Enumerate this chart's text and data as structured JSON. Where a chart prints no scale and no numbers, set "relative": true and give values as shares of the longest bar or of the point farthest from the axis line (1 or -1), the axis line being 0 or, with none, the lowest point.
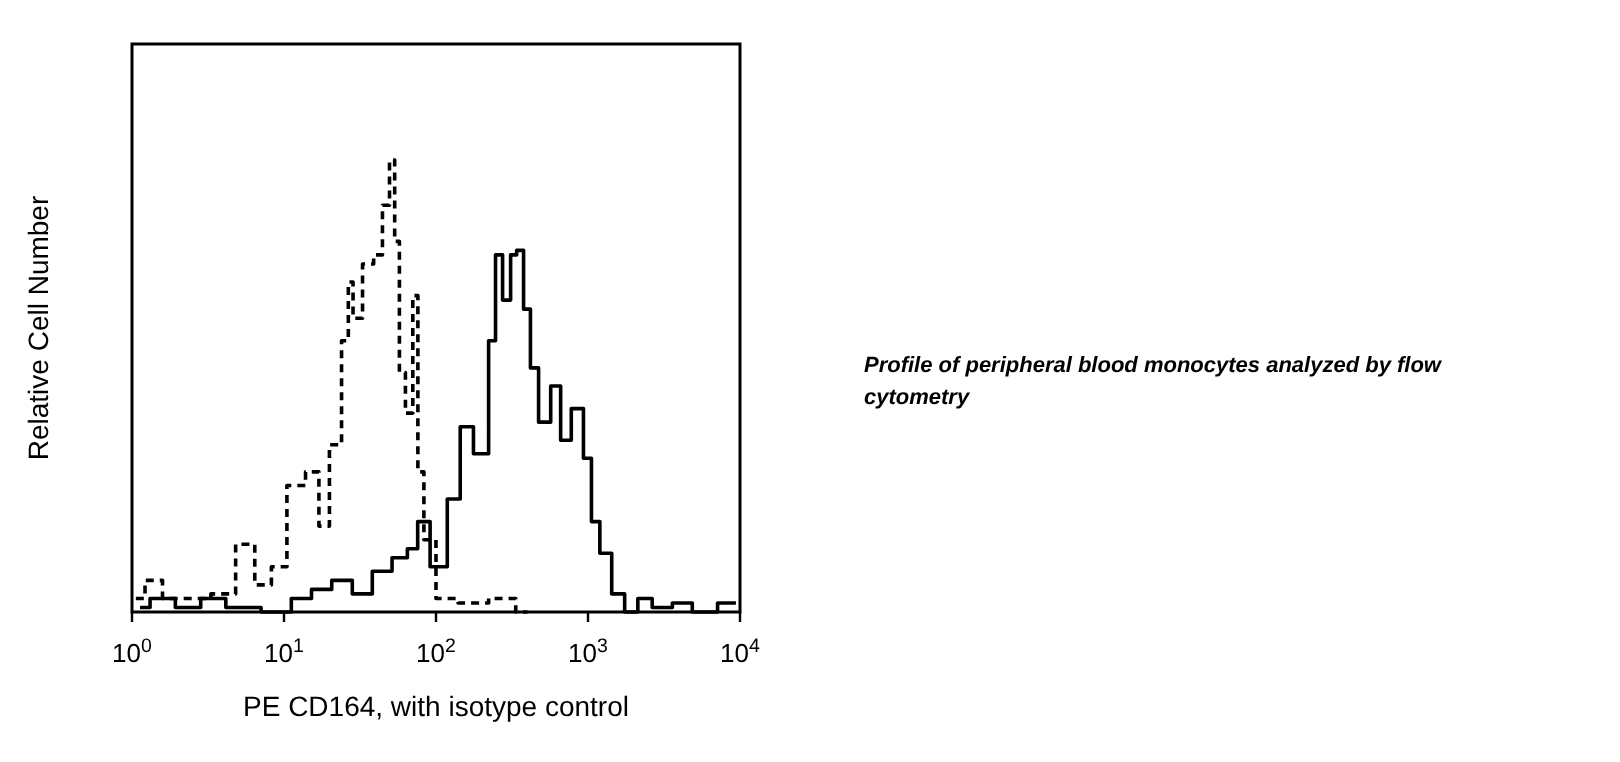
{
  "chart_data": {
    "type": "step",
    "relative": true,
    "log": "x",
    "xlabel": "PE CD164, with isotype control",
    "ylabel": "Relative Cell Number",
    "xlim": [
      1,
      10000
    ],
    "xticks": [
      {
        "value": 1,
        "label": "10$^{0}$"
      },
      {
        "value": 10,
        "label": "10$^{1}$"
      },
      {
        "value": 100,
        "label": "10$^{2}$"
      },
      {
        "value": 1000,
        "label": "10$^{3}$"
      },
      {
        "value": 10000,
        "label": "10$^{4}$"
      }
    ],
    "tick_labels": "x",
    "annotations": [
      "Profile of peripheral blood monocytes analyzed by flow cytometry"
    ],
    "series": [
      {
        "color": "#000000",
        "line_style": "dashed",
        "x": [
          1.06,
          1.4,
          1.8,
          2.6,
          4.2,
          5.5,
          7.5,
          9.1,
          12,
          16,
          18,
          22,
          26,
          27,
          30,
          36,
          42,
          47,
          52,
          55,
          60,
          66,
          75,
          77,
          90,
          111,
          176,
          280,
          400
        ],
        "values": [
          0.03,
          0.07,
          0.03,
          0.03,
          0.04,
          0.15,
          0.06,
          0.1,
          0.28,
          0.31,
          0.19,
          0.37,
          0.6,
          0.73,
          0.65,
          0.77,
          0.79,
          0.9,
          1,
          0.82,
          0.53,
          0.44,
          0.7,
          0.31,
          0.16,
          0.03,
          0.02,
          0.03,
          0
        ]
      },
      {
        "color": "#000000",
        "line_style": "solid",
        "x": [
          1.13,
          1.53,
          2.43,
          3.3,
          5.2,
          9.6,
          13,
          17.7,
          24,
          33,
          44,
          60,
          70,
          82,
          102,
          138,
          151,
          206,
          239,
          254,
          296,
          324,
          355,
          400,
          437,
          512,
          631,
          692,
          871,
          1000,
          1110,
          1290,
          1590,
          1910,
          2370,
          2950,
          4370,
          5390,
          9400
        ],
        "values": [
          0.01,
          0.03,
          0.01,
          0.03,
          0.01,
          0,
          0.03,
          0.05,
          0.07,
          0.04,
          0.09,
          0.12,
          0.14,
          0.2,
          0.1,
          0.25,
          0.41,
          0.35,
          0.6,
          0.79,
          0.69,
          0.79,
          0.8,
          0.67,
          0.54,
          0.42,
          0.5,
          0.38,
          0.45,
          0.34,
          0.2,
          0.13,
          0.04,
          0,
          0.03,
          0.01,
          0.02,
          0,
          0.02
        ]
      }
    ]
  }
}
